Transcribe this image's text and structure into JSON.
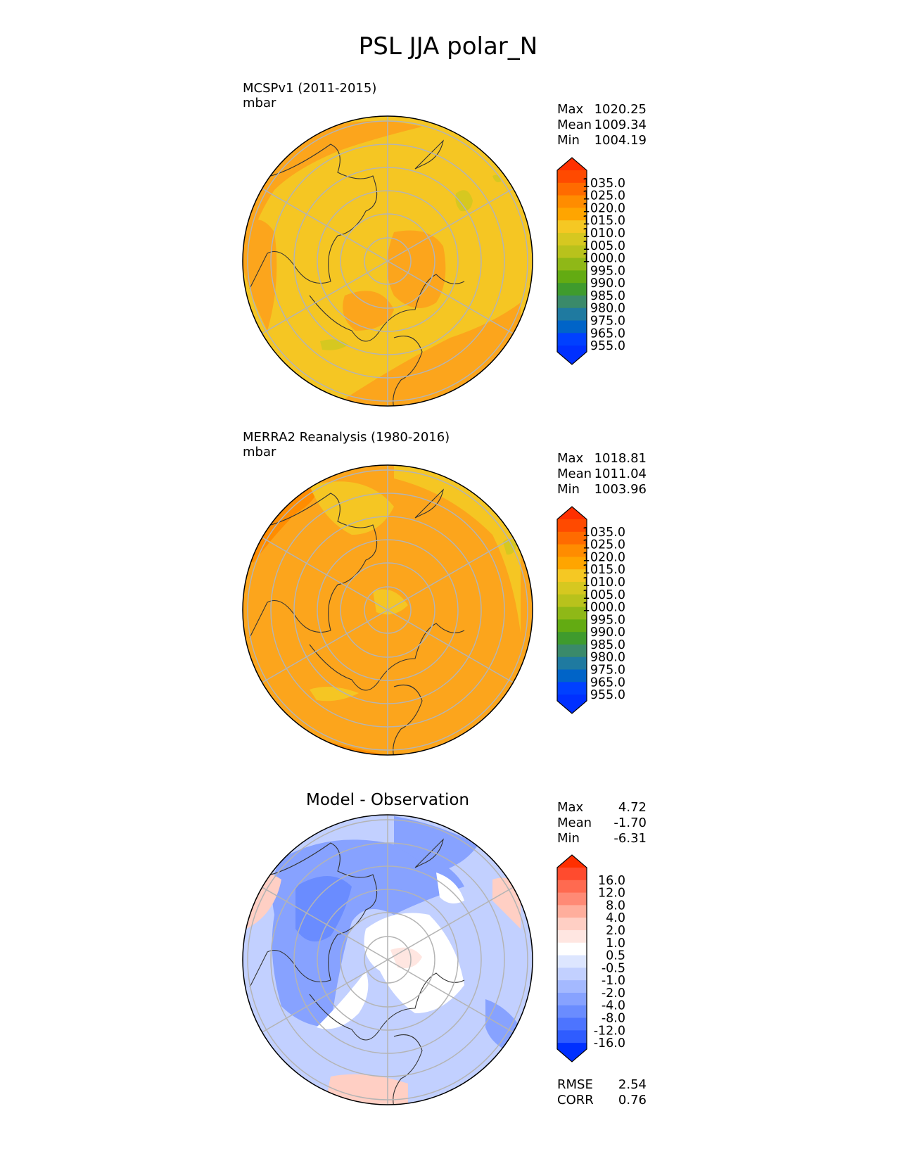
{
  "figure_title": "PSL JJA polar_N",
  "chart_data": [
    {
      "type": "heatmap",
      "projection": "north polar stereographic",
      "title": "MCSPv1 (2011-2015)",
      "units": "mbar",
      "stats": [
        {
          "label": "Max",
          "value": "1020.25"
        },
        {
          "label": "Mean",
          "value": "1009.34"
        },
        {
          "label": "Min",
          "value": "1004.19"
        }
      ],
      "colorbar": {
        "ticks": [
          "1035.0",
          "1025.0",
          "1020.0",
          "1015.0",
          "1010.0",
          "1005.0",
          "1000.0",
          "995.0",
          "990.0",
          "985.0",
          "980.0",
          "975.0",
          "965.0",
          "955.0"
        ],
        "colors": [
          "#ff4a00",
          "#ff6b00",
          "#ff8c00",
          "#ffa500",
          "#f5c823",
          "#d6c820",
          "#b8c21c",
          "#8fb817",
          "#63ab12",
          "#3f9b2d",
          "#3a8a6a",
          "#1f7aa0",
          "#0064c8",
          "#0040ff"
        ],
        "extend": "both",
        "max_color": "#ff2f00",
        "min_color": "#0030ff"
      },
      "dominant_color": "#f5c623",
      "high_color": "#fca51c"
    },
    {
      "type": "heatmap",
      "projection": "north polar stereographic",
      "title": "MERRA2 Reanalysis (1980-2016)",
      "units": "mbar",
      "stats": [
        {
          "label": "Max",
          "value": "1018.81"
        },
        {
          "label": "Mean",
          "value": "1011.04"
        },
        {
          "label": "Min",
          "value": "1003.96"
        }
      ],
      "colorbar": {
        "ticks": [
          "1035.0",
          "1025.0",
          "1020.0",
          "1015.0",
          "1010.0",
          "1005.0",
          "1000.0",
          "995.0",
          "990.0",
          "985.0",
          "980.0",
          "975.0",
          "965.0",
          "955.0"
        ],
        "colors": [
          "#ff4a00",
          "#ff6b00",
          "#ff8c00",
          "#ffa500",
          "#f5c823",
          "#d6c820",
          "#b8c21c",
          "#8fb817",
          "#63ab12",
          "#3f9b2d",
          "#3a8a6a",
          "#1f7aa0",
          "#0064c8",
          "#0040ff"
        ],
        "extend": "both",
        "max_color": "#ff2f00",
        "min_color": "#0030ff"
      },
      "dominant_color": "#fca51c",
      "high_color": "#f5c623"
    },
    {
      "type": "heatmap",
      "projection": "north polar stereographic",
      "title": "Model - Observation",
      "stats": [
        {
          "label": "Max",
          "value": "4.72"
        },
        {
          "label": "Mean",
          "value": "-1.70"
        },
        {
          "label": "Min",
          "value": "-6.31"
        }
      ],
      "extra_stats": [
        {
          "label": "RMSE",
          "value": "2.54"
        },
        {
          "label": "CORR",
          "value": "0.76"
        }
      ],
      "colorbar": {
        "ticks": [
          "16.0",
          "12.0",
          "8.0",
          "4.0",
          "2.0",
          "1.0",
          "0.5",
          "-0.5",
          "-1.0",
          "-2.0",
          "-4.0",
          "-8.0",
          "-12.0",
          "-16.0"
        ],
        "colors": [
          "#ff4b2e",
          "#ff6a50",
          "#ff8a75",
          "#ffae9c",
          "#ffcfc4",
          "#ffe6e1",
          "#ffffff",
          "#dde6ff",
          "#c2d0ff",
          "#a4b9ff",
          "#87a2ff",
          "#6a8cff",
          "#4d74ff",
          "#2f5cff"
        ],
        "extend": "both",
        "max_color": "#ff2f00",
        "min_color": "#0030ff"
      },
      "dominant_color": "#a4b9ff",
      "high_color": "#ffcfc4"
    }
  ]
}
